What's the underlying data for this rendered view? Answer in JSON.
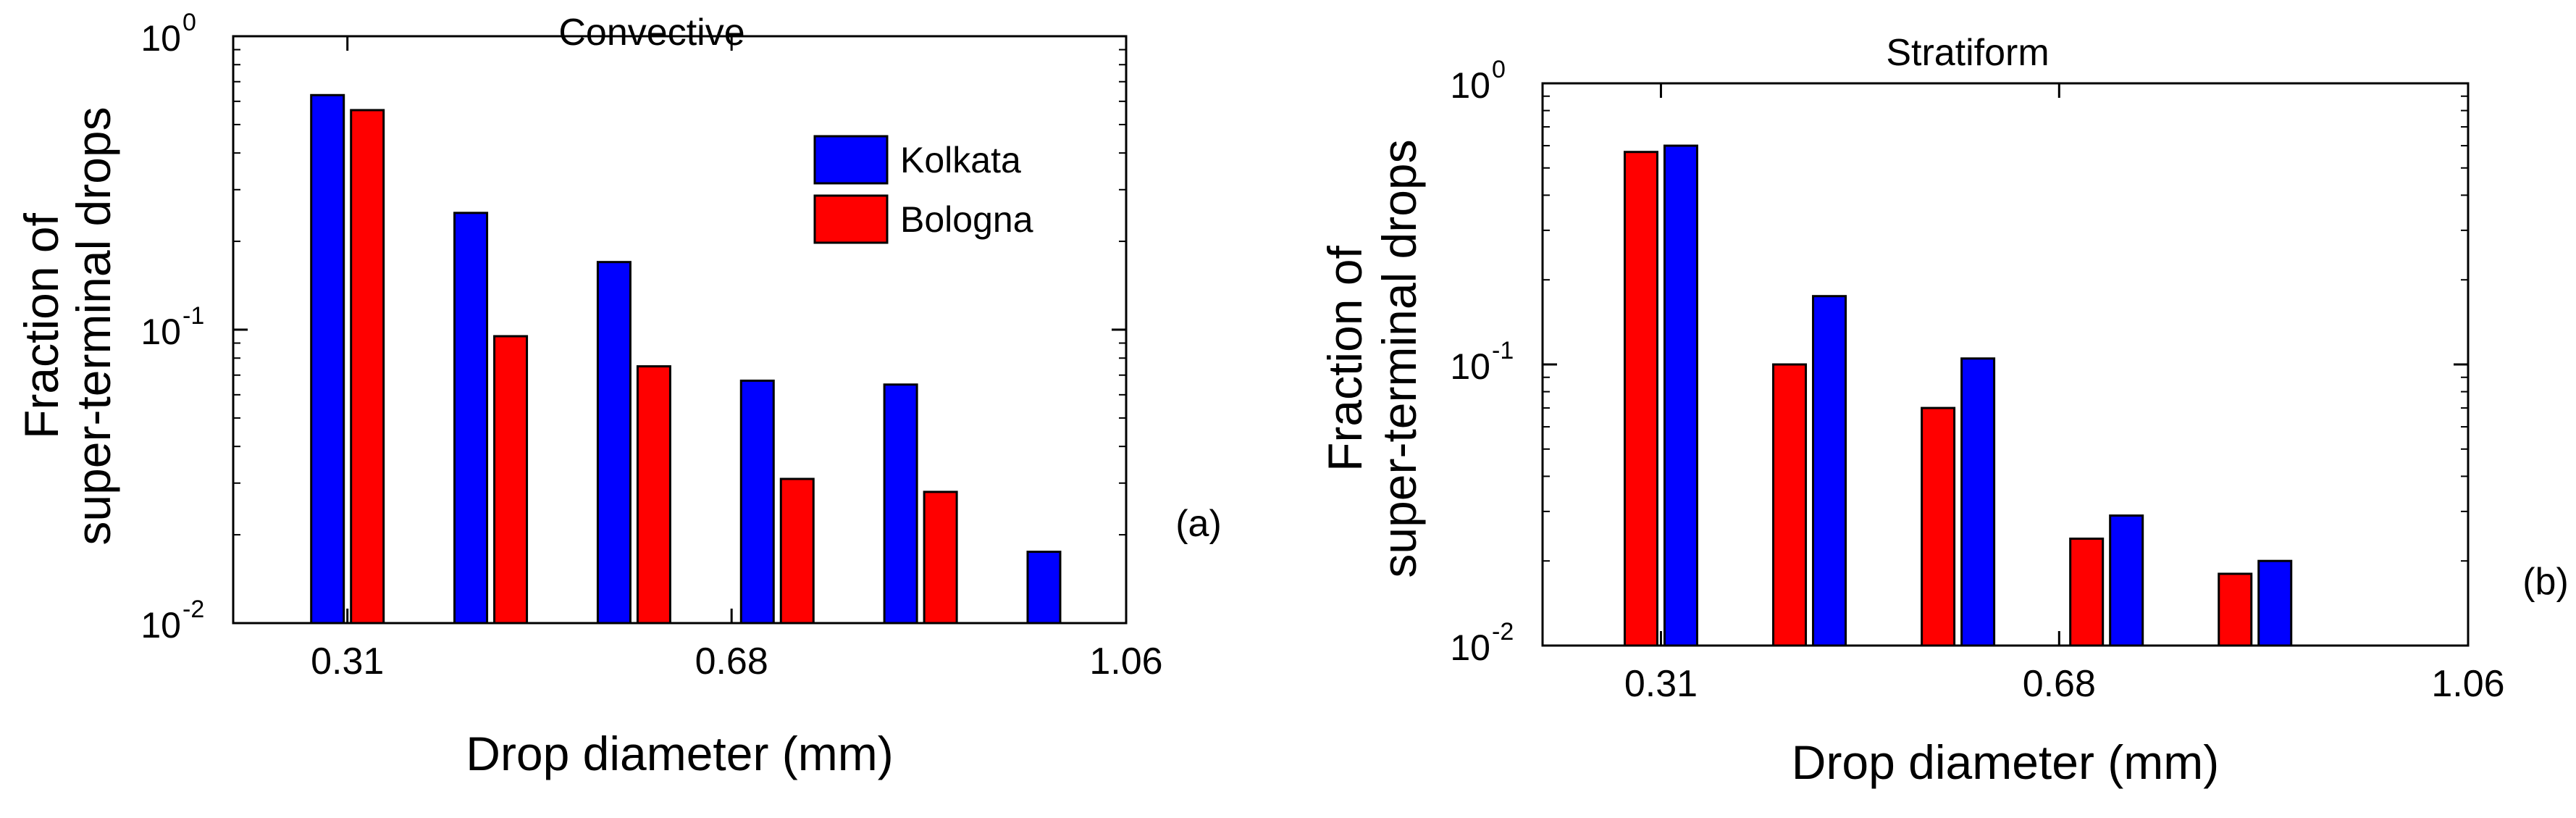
{
  "chart_data": [
    {
      "type": "bar",
      "panel_label": "(a)",
      "title": "Convective",
      "xlabel": "Drop diameter (mm)",
      "ylabel_line1": "Fraction of",
      "ylabel_line2": "super-terminal drops",
      "yscale": "log",
      "ylim": [
        0.01,
        1
      ],
      "ytick_values": [
        0.01,
        0.1,
        1
      ],
      "yticks": [
        {
          "base": "10",
          "exp": "-2"
        },
        {
          "base": "10",
          "exp": "-1"
        },
        {
          "base": "10",
          "exp": "0"
        }
      ],
      "xlim": [
        0.2,
        1.06
      ],
      "xtick_values": [
        0.31,
        0.68,
        1.06
      ],
      "xtick_labels": [
        "0.31",
        "0.68",
        "1.06"
      ],
      "bin_centers": [
        0.31,
        0.448,
        0.586,
        0.724,
        0.862,
        1.0
      ],
      "series": [
        {
          "name": "Kolkata",
          "color": "#0000ff",
          "values": [
            0.63,
            0.25,
            0.17,
            0.067,
            0.065,
            0.0175
          ]
        },
        {
          "name": "Bologna",
          "color": "#ff0000",
          "values": [
            0.56,
            0.095,
            0.075,
            0.031,
            0.028,
            null
          ]
        }
      ],
      "legend": {
        "position": "top-right",
        "entries": [
          "Kolkata",
          "Bologna"
        ]
      }
    },
    {
      "type": "bar",
      "panel_label": "(b)",
      "title": "Stratiform",
      "xlabel": "Drop diameter (mm)",
      "ylabel_line1": "Fraction of",
      "ylabel_line2": "super-terminal drops",
      "yscale": "log",
      "ylim": [
        0.01,
        1
      ],
      "ytick_values": [
        0.01,
        0.1,
        1
      ],
      "yticks": [
        {
          "base": "10",
          "exp": "-2"
        },
        {
          "base": "10",
          "exp": "-1"
        },
        {
          "base": "10",
          "exp": "0"
        }
      ],
      "xlim": [
        0.2,
        1.06
      ],
      "xtick_values": [
        0.31,
        0.68,
        1.06
      ],
      "xtick_labels": [
        "0.31",
        "0.68",
        "1.06"
      ],
      "bin_centers": [
        0.31,
        0.448,
        0.586,
        0.724,
        0.862,
        1.0
      ],
      "series": [
        {
          "name": "Bologna",
          "color": "#ff0000",
          "values": [
            0.57,
            0.1,
            0.07,
            0.024,
            0.018,
            null
          ]
        },
        {
          "name": "Kolkata",
          "color": "#0000ff",
          "values": [
            0.6,
            0.175,
            0.105,
            0.029,
            0.02,
            null
          ]
        }
      ]
    }
  ]
}
